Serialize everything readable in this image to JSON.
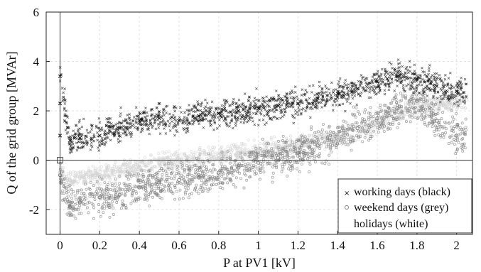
{
  "chart_data": {
    "type": "scatter",
    "xlabel": "P at PV1 [kV]",
    "ylabel": "Q of the grid group [MVAr]",
    "xlim": [
      -0.07,
      2.08
    ],
    "ylim": [
      -3,
      6
    ],
    "xticks": [
      0,
      0.2,
      0.4,
      0.6,
      0.8,
      1,
      1.2,
      1.4,
      1.6,
      1.8,
      2
    ],
    "xtick_labels": [
      "0",
      "0.2",
      "0.4",
      "0.6",
      "0.8",
      "1",
      "1.2",
      "1.4",
      "1.6",
      "1.8",
      "2"
    ],
    "yticks": [
      -2,
      0,
      2,
      4,
      6
    ],
    "ytick_labels": [
      "-2",
      "0",
      "2",
      "4",
      "6"
    ],
    "grid": true,
    "legend_position": "bottom-right",
    "colors": {
      "working": "#111111",
      "weekend": "#808080",
      "holidays": "#d2d2d2"
    },
    "series": [
      {
        "name": "working days (black)",
        "marker": "x",
        "color": "#111111",
        "x": [
          0.0,
          0.0,
          0.0,
          0.05,
          0.1,
          0.2,
          0.3,
          0.4,
          0.5,
          0.6,
          0.7,
          0.8,
          0.9,
          1.0,
          1.1,
          1.2,
          1.3,
          1.4,
          1.5,
          1.6,
          1.65,
          1.7,
          1.8,
          1.9,
          2.0
        ],
        "y": [
          2.3,
          1.0,
          3.4,
          0.8,
          0.9,
          1.0,
          1.3,
          1.6,
          1.7,
          1.6,
          1.8,
          1.9,
          2.0,
          2.1,
          2.2,
          2.3,
          2.5,
          2.7,
          2.9,
          3.2,
          3.3,
          3.4,
          3.3,
          3.0,
          2.8
        ]
      },
      {
        "name": "weekend days (grey)",
        "marker": "o",
        "color": "#808080",
        "x": [
          0.0,
          0.05,
          0.1,
          0.2,
          0.3,
          0.4,
          0.5,
          0.6,
          0.7,
          0.8,
          0.9,
          1.0,
          1.1,
          1.2,
          1.3,
          1.4,
          1.5,
          1.6,
          1.7,
          1.8,
          1.9,
          2.0
        ],
        "y": [
          -0.6,
          -1.9,
          -1.7,
          -1.5,
          -1.4,
          -1.1,
          -0.9,
          -0.8,
          -0.7,
          -0.5,
          -0.3,
          -0.1,
          0.1,
          0.3,
          0.6,
          0.9,
          1.3,
          1.7,
          2.1,
          2.4,
          1.6,
          1.0
        ]
      },
      {
        "name": "holidays (white)",
        "marker": "o",
        "color": "#d2d2d2",
        "x": [
          0.0,
          0.05,
          0.1,
          0.2,
          0.3,
          0.4,
          0.5,
          0.6,
          0.7,
          0.8,
          0.9,
          1.0,
          1.2,
          1.4,
          1.6,
          1.8
        ],
        "y": [
          -0.5,
          -0.8,
          -0.7,
          -0.6,
          -0.4,
          -0.3,
          -0.1,
          0.0,
          0.1,
          0.2,
          0.3,
          0.4,
          0.6,
          0.9,
          1.5,
          2.3
        ]
      }
    ]
  }
}
